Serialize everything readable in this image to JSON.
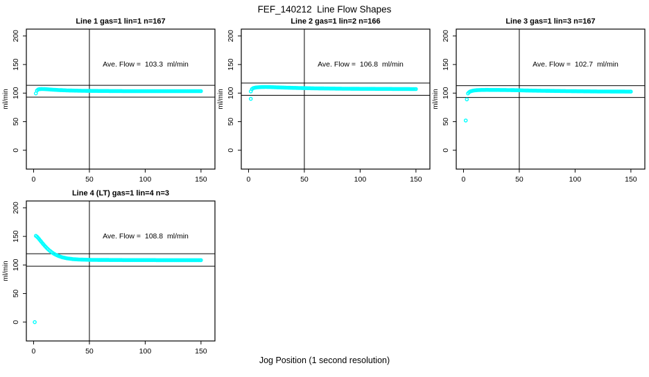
{
  "figure": {
    "title": "FEF_140212  Line Flow Shapes",
    "xlabel": "Jog Position (1 second resolution)",
    "ylabel": "ml/min",
    "point_color": "#00ffff",
    "line_color": "#000000",
    "background": "#ffffff"
  },
  "chart_data": [
    {
      "type": "scatter",
      "title": "Line 1 gas=1 lin=1 n=167",
      "annotation": "Ave. Flow =  103.3  ml/min",
      "ave_flow_ml_min": 103.3,
      "n_points": 167,
      "xlim": [
        -6.5,
        162.5
      ],
      "ylim": [
        -33,
        212
      ],
      "xticks": [
        0,
        50,
        100,
        150
      ],
      "yticks": [
        0,
        50,
        100,
        150,
        200
      ],
      "vline_x": 50,
      "hlines": [
        113.6,
        93.0
      ],
      "outliers": [],
      "curve": [
        [
          2,
          99.5
        ],
        [
          3,
          104.5
        ],
        [
          4,
          106.2
        ],
        [
          5,
          106.8
        ],
        [
          7,
          107.2
        ],
        [
          10,
          107.0
        ],
        [
          13,
          106.6
        ],
        [
          16,
          106.1
        ],
        [
          20,
          105.6
        ],
        [
          25,
          105.1
        ],
        [
          30,
          104.7
        ],
        [
          40,
          104.2
        ],
        [
          50,
          103.9
        ],
        [
          60,
          103.7
        ],
        [
          80,
          103.5
        ],
        [
          100,
          103.4
        ],
        [
          150,
          103.4
        ]
      ]
    },
    {
      "type": "scatter",
      "title": "Line 2 gas=1 lin=2 n=166",
      "annotation": "Ave. Flow =  106.8  ml/min",
      "ave_flow_ml_min": 106.8,
      "n_points": 166,
      "xlim": [
        -6.5,
        162.5
      ],
      "ylim": [
        -33,
        212
      ],
      "xticks": [
        0,
        50,
        100,
        150
      ],
      "yticks": [
        0,
        50,
        100,
        150,
        200
      ],
      "vline_x": 50,
      "hlines": [
        117.5,
        96.1
      ],
      "outliers": [
        [
          2,
          90
        ]
      ],
      "curve": [
        [
          2,
          103.0
        ],
        [
          3,
          107.0
        ],
        [
          4,
          108.6
        ],
        [
          6,
          109.6
        ],
        [
          9,
          110.3
        ],
        [
          12,
          110.6
        ],
        [
          16,
          110.7
        ],
        [
          20,
          110.5
        ],
        [
          25,
          110.1
        ],
        [
          30,
          109.8
        ],
        [
          40,
          109.2
        ],
        [
          50,
          108.7
        ],
        [
          60,
          108.3
        ],
        [
          80,
          107.8
        ],
        [
          100,
          107.5
        ],
        [
          150,
          107.1
        ]
      ]
    },
    {
      "type": "scatter",
      "title": "Line 3 gas=1 lin=3 n=167",
      "annotation": "Ave. Flow =  102.7  ml/min",
      "ave_flow_ml_min": 102.7,
      "n_points": 167,
      "xlim": [
        -6.5,
        162.5
      ],
      "ylim": [
        -33,
        212
      ],
      "xticks": [
        0,
        50,
        100,
        150
      ],
      "yticks": [
        0,
        50,
        100,
        150,
        200
      ],
      "vline_x": 50,
      "hlines": [
        113.0,
        92.4
      ],
      "outliers": [
        [
          2,
          52
        ],
        [
          3,
          89
        ]
      ],
      "curve": [
        [
          4,
          99.5
        ],
        [
          5,
          101.5
        ],
        [
          6,
          102.8
        ],
        [
          8,
          104.0
        ],
        [
          10,
          104.8
        ],
        [
          14,
          105.4
        ],
        [
          20,
          105.6
        ],
        [
          30,
          105.5
        ],
        [
          40,
          105.3
        ],
        [
          50,
          104.9
        ],
        [
          60,
          104.4
        ],
        [
          80,
          103.8
        ],
        [
          100,
          103.3
        ],
        [
          120,
          102.9
        ],
        [
          150,
          102.6
        ]
      ]
    },
    {
      "type": "scatter",
      "title": "Line 4 (LT) gas=1 lin=4 n=3",
      "annotation": "Ave. Flow =  108.8  ml/min",
      "ave_flow_ml_min": 108.8,
      "n_points": 3,
      "xlim": [
        -6.5,
        162.5
      ],
      "ylim": [
        -33,
        212
      ],
      "xticks": [
        0,
        50,
        100,
        150
      ],
      "yticks": [
        0,
        50,
        100,
        150,
        200
      ],
      "vline_x": 50,
      "hlines": [
        119.7,
        97.9
      ],
      "outliers": [
        [
          1,
          0
        ]
      ],
      "curve": [
        [
          2,
          151.0
        ],
        [
          3,
          149.5
        ],
        [
          4,
          147.5
        ],
        [
          5,
          145.2
        ],
        [
          6,
          142.8
        ],
        [
          8,
          138.0
        ],
        [
          10,
          133.4
        ],
        [
          12,
          129.3
        ],
        [
          14,
          125.7
        ],
        [
          16,
          122.6
        ],
        [
          18,
          120.0
        ],
        [
          20,
          117.8
        ],
        [
          23,
          115.2
        ],
        [
          26,
          113.3
        ],
        [
          30,
          111.6
        ],
        [
          35,
          110.3
        ],
        [
          40,
          109.6
        ],
        [
          50,
          109.0
        ],
        [
          60,
          108.8
        ],
        [
          80,
          108.6
        ],
        [
          100,
          108.5
        ],
        [
          150,
          108.4
        ]
      ]
    }
  ]
}
